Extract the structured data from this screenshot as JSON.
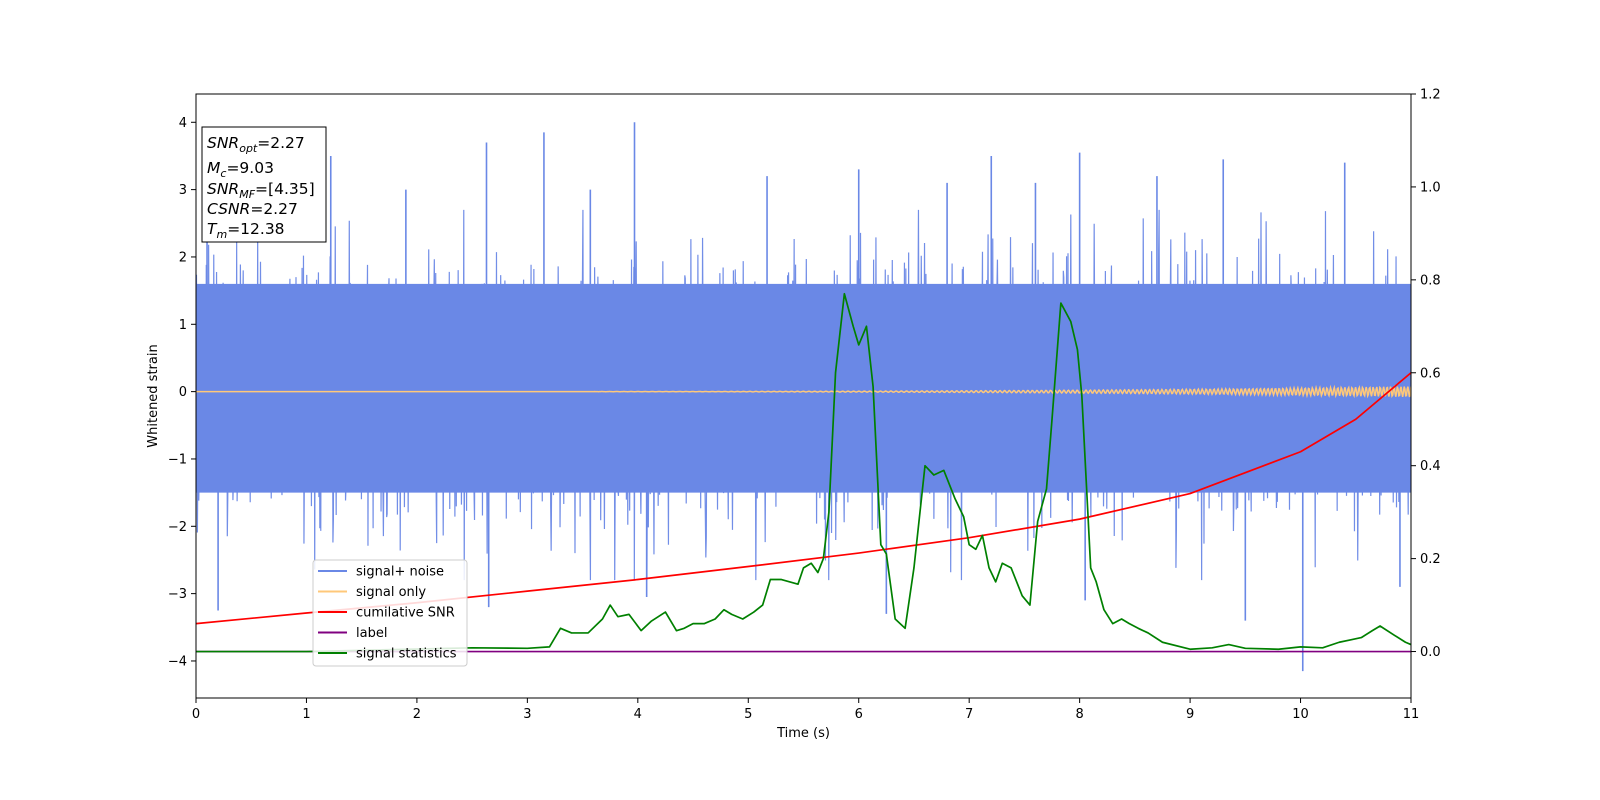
{
  "chart_data": {
    "type": "line",
    "xlabel": "Time (s)",
    "ylabel": "Whitened strain",
    "xlim": [
      0,
      11
    ],
    "ylim_left": [
      -4.55,
      4.42
    ],
    "ylim_right": [
      -0.1,
      1.2
    ],
    "x_ticks": [
      0,
      1,
      2,
      3,
      4,
      5,
      6,
      7,
      8,
      9,
      10,
      11
    ],
    "y_ticks_left": [
      -4,
      -3,
      -2,
      -1,
      0,
      1,
      2,
      3,
      4
    ],
    "y_ticks_right": [
      0.0,
      0.2,
      0.4,
      0.6,
      0.8,
      1.0,
      1.2
    ],
    "legend_position": "lower-left",
    "series": [
      {
        "name": "signal+ noise",
        "axis": "left",
        "color": "#6a88e6",
        "note_style": "dense noise band",
        "x_range": [
          0,
          11
        ],
        "core_band": [
          -1.5,
          1.6
        ],
        "typical_extent": [
          -2.8,
          2.7
        ],
        "peaks": [
          {
            "x": 0.1,
            "y": 2.9
          },
          {
            "x": 0.2,
            "y": -3.25
          },
          {
            "x": 1.22,
            "y": 3.5
          },
          {
            "x": 1.9,
            "y": 3.0
          },
          {
            "x": 2.63,
            "y": 3.7
          },
          {
            "x": 2.65,
            "y": -3.2
          },
          {
            "x": 3.15,
            "y": 3.85
          },
          {
            "x": 3.57,
            "y": 3.0
          },
          {
            "x": 3.97,
            "y": 4.0
          },
          {
            "x": 4.08,
            "y": -3.05
          },
          {
            "x": 5.17,
            "y": 3.2
          },
          {
            "x": 6.0,
            "y": 3.3
          },
          {
            "x": 6.25,
            "y": -3.3
          },
          {
            "x": 6.8,
            "y": 3.1
          },
          {
            "x": 7.2,
            "y": 3.5
          },
          {
            "x": 7.6,
            "y": 3.1
          },
          {
            "x": 8.0,
            "y": 3.55
          },
          {
            "x": 8.05,
            "y": -3.1
          },
          {
            "x": 8.7,
            "y": 3.2
          },
          {
            "x": 9.3,
            "y": 3.45
          },
          {
            "x": 9.5,
            "y": -3.4
          },
          {
            "x": 10.02,
            "y": -4.15
          },
          {
            "x": 10.4,
            "y": 3.4
          },
          {
            "x": 10.9,
            "y": -2.9
          }
        ]
      },
      {
        "name": "signal only",
        "axis": "left",
        "color": "#ffc87a",
        "x_range": [
          0,
          11
        ],
        "y": 0,
        "oscillation_amplitude_start": 0.0,
        "oscillation_amplitude_end": 0.08
      },
      {
        "name": "cumilative SNR",
        "axis": "right",
        "color": "#ff0000",
        "x": [
          0,
          1,
          2,
          3,
          4,
          5,
          6,
          7,
          8,
          9,
          10,
          10.5,
          11
        ],
        "y": [
          0.06,
          0.083,
          0.105,
          0.13,
          0.155,
          0.183,
          0.212,
          0.245,
          0.285,
          0.34,
          0.43,
          0.5,
          0.6
        ]
      },
      {
        "name": "label",
        "axis": "right",
        "color": "#800080",
        "x": [
          0,
          11
        ],
        "y": [
          0.0,
          0.0
        ]
      },
      {
        "name": "signal statistics",
        "axis": "right",
        "color": "#008000",
        "x": [
          0,
          1.0,
          2.5,
          3.0,
          3.2,
          3.3,
          3.4,
          3.55,
          3.68,
          3.75,
          3.82,
          3.92,
          4.03,
          4.12,
          4.25,
          4.35,
          4.42,
          4.5,
          4.6,
          4.7,
          4.78,
          4.85,
          4.95,
          5.05,
          5.13,
          5.2,
          5.3,
          5.45,
          5.5,
          5.57,
          5.63,
          5.68,
          5.73,
          5.79,
          5.87,
          5.95,
          6.0,
          6.07,
          6.13,
          6.2,
          6.25,
          6.33,
          6.42,
          6.5,
          6.6,
          6.68,
          6.77,
          6.87,
          6.95,
          7.0,
          7.06,
          7.12,
          7.18,
          7.24,
          7.3,
          7.38,
          7.48,
          7.55,
          7.62,
          7.7,
          7.75,
          7.83,
          7.92,
          7.98,
          8.02,
          8.1,
          8.15,
          8.22,
          8.3,
          8.38,
          8.45,
          8.53,
          8.62,
          8.75,
          9.0,
          9.2,
          9.35,
          9.5,
          9.8,
          10.0,
          10.2,
          10.35,
          10.45,
          10.55,
          10.65,
          10.72,
          10.85,
          10.95,
          11.0
        ],
        "y": [
          0.0,
          0.0,
          0.008,
          0.007,
          0.01,
          0.05,
          0.04,
          0.04,
          0.07,
          0.1,
          0.075,
          0.08,
          0.045,
          0.065,
          0.085,
          0.045,
          0.05,
          0.06,
          0.06,
          0.07,
          0.09,
          0.08,
          0.07,
          0.085,
          0.1,
          0.155,
          0.155,
          0.145,
          0.18,
          0.19,
          0.17,
          0.2,
          0.3,
          0.6,
          0.77,
          0.7,
          0.66,
          0.7,
          0.57,
          0.23,
          0.21,
          0.07,
          0.05,
          0.18,
          0.4,
          0.38,
          0.39,
          0.33,
          0.29,
          0.23,
          0.22,
          0.25,
          0.18,
          0.15,
          0.19,
          0.18,
          0.12,
          0.1,
          0.28,
          0.35,
          0.5,
          0.75,
          0.71,
          0.65,
          0.55,
          0.18,
          0.15,
          0.09,
          0.06,
          0.07,
          0.06,
          0.05,
          0.04,
          0.02,
          0.005,
          0.008,
          0.015,
          0.007,
          0.005,
          0.01,
          0.008,
          0.02,
          0.025,
          0.03,
          0.045,
          0.055,
          0.035,
          0.02,
          0.015
        ]
      }
    ],
    "annotations": {
      "snr_opt": {
        "base": "SNR",
        "sub": "opt",
        "value": "=2.27"
      },
      "mc": {
        "base": "M",
        "sub": "c",
        "value": "=9.03"
      },
      "snr_mf": {
        "base": "SNR",
        "sub": "MF",
        "value": "=[4.35]"
      },
      "csnr": {
        "base": "CSNR",
        "value": "=2.27"
      },
      "tm": {
        "base": "T",
        "sub": "m",
        "value": "=12.38"
      }
    }
  }
}
